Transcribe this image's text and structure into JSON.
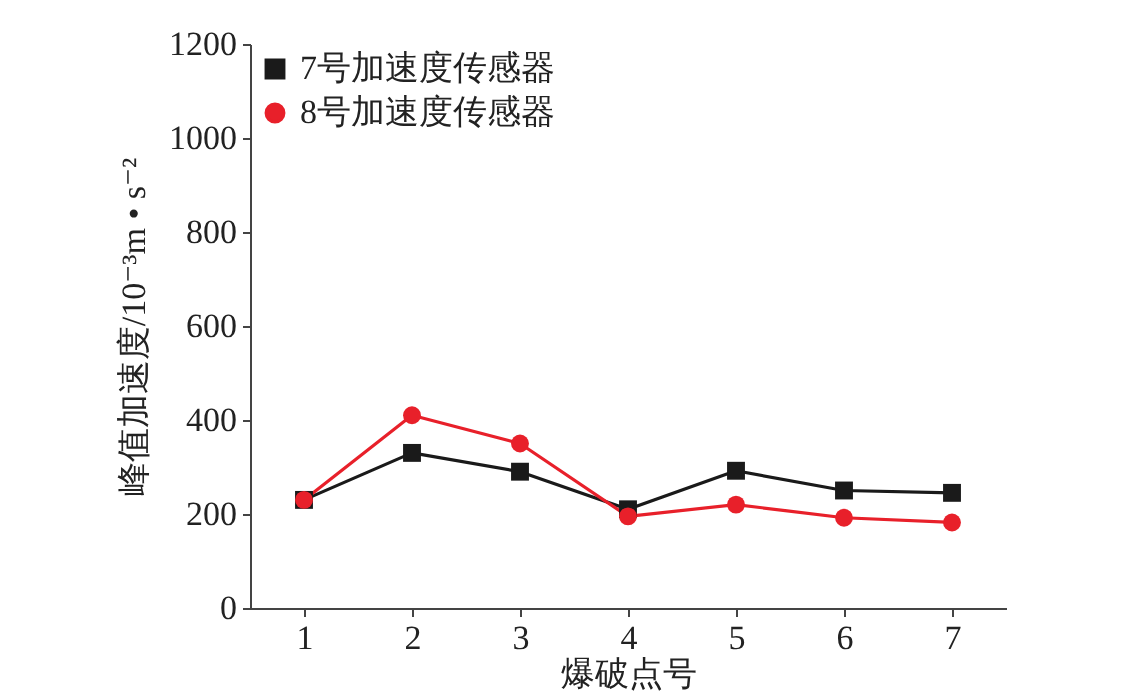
{
  "chart_data": {
    "type": "line",
    "xlabel": "爆破点号",
    "ylabel": "峰值加速度/10⁻³m • s⁻²",
    "x": [
      1,
      2,
      3,
      4,
      5,
      6,
      7
    ],
    "series": [
      {
        "name": "7号加速度传感器",
        "color": "#1a1a1a",
        "marker": "square",
        "values": [
          230,
          330,
          290,
          210,
          292,
          250,
          245
        ]
      },
      {
        "name": "8号加速度传感器",
        "color": "#e8202a",
        "marker": "circle",
        "values": [
          230,
          410,
          350,
          195,
          220,
          192,
          182
        ]
      }
    ],
    "xlim": [
      0.5,
      7.5
    ],
    "xticks": [
      1,
      2,
      3,
      4,
      5,
      6,
      7
    ],
    "ylim": [
      0,
      1200
    ],
    "yticks": [
      0,
      200,
      400,
      600,
      800,
      1000,
      1200
    ],
    "grid": false,
    "legend": "top left",
    "line_style": "solid"
  }
}
